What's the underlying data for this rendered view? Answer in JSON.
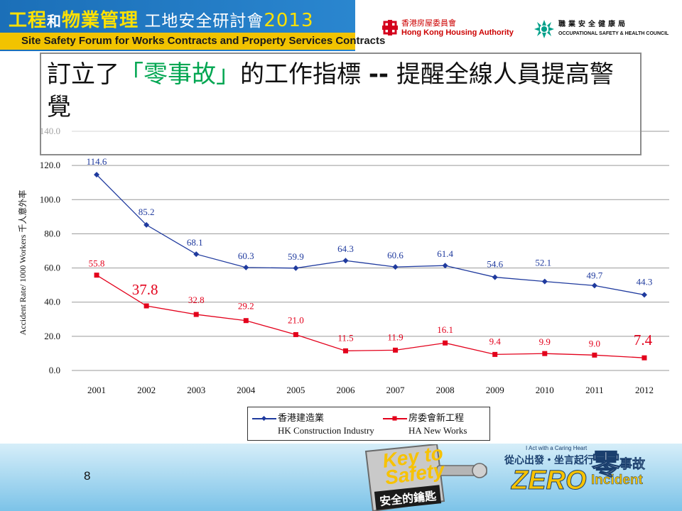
{
  "header": {
    "title_part1": "工程",
    "title_part2": "和",
    "title_part3": "物業管理",
    "title_part4": " 工地安全研討會",
    "title_year": "2013",
    "subtitle": "Site Safety Forum for Works Contracts and Property Services Contracts",
    "logo_hk_zh": "香港房屋委員會",
    "logo_hk_en": "Hong Kong Housing Authority",
    "logo_osh_zh": "職業安全健康局",
    "logo_osh_en": "OCCUPATIONAL SAFETY & HEALTH COUNCIL"
  },
  "slide": {
    "title_pre": "訂立了",
    "title_highlight": "「零事故」",
    "title_mid": "的工作指標 ",
    "title_dash": "--",
    "title_post": " 提醒全線人員提高警覺",
    "page_number": "8"
  },
  "footer": {
    "key_text_1": "Key to",
    "key_text_2": "Safety",
    "key_zh": "安全的鑰匙",
    "caring_en": "I Act with a Caring Heart",
    "caring_zh": "從心出發・坐言起行",
    "zero": "ZERO",
    "zero_char": "零",
    "shigu": "事故",
    "incident": "Incident"
  },
  "colors": {
    "series1": "#1f3a9e",
    "series2": "#e3001b",
    "grid": "#9a9a9a",
    "accent_green": "#00a651",
    "banner_yellow": "#f2c300",
    "banner_blue": "#1b6fb8"
  },
  "chart_data": {
    "type": "line",
    "x": [
      "2001",
      "2002",
      "2003",
      "2004",
      "2005",
      "2006",
      "2007",
      "2008",
      "2009",
      "2010",
      "2011",
      "2012"
    ],
    "ylabel": "Accident Rate/ 1000 Workers   千人意外率",
    "ylim": [
      0,
      140
    ],
    "yticks": [
      "0.0",
      "20.0",
      "40.0",
      "60.0",
      "80.0",
      "100.0",
      "120.0",
      "140.0"
    ],
    "grid": "horizontal",
    "legend_position": "bottom",
    "series": [
      {
        "name": "香港建造業",
        "name_en": "HK Construction Industry",
        "color": "#1f3a9e",
        "marker": "diamond",
        "values": [
          114.6,
          85.2,
          68.1,
          60.3,
          59.9,
          64.3,
          60.6,
          61.4,
          54.6,
          52.1,
          49.7,
          44.3
        ],
        "labels": [
          "114.6",
          "85.2",
          "68.1",
          "60.3",
          "59.9",
          "64.3",
          "60.6",
          "61.4",
          "54.6",
          "52.1",
          "49.7",
          "44.3"
        ]
      },
      {
        "name": "房委會新工程",
        "name_en": "HA New Works",
        "color": "#e3001b",
        "marker": "square",
        "values": [
          55.8,
          37.8,
          32.8,
          29.2,
          21.0,
          11.5,
          11.9,
          16.1,
          9.4,
          9.9,
          9.0,
          7.4
        ],
        "labels": [
          "55.8",
          "37.8",
          "32.8",
          "29.2",
          "21.0",
          "11.5",
          "11.9",
          "16.1",
          "9.4",
          "9.9",
          "9.0",
          "7.4"
        ],
        "emphasized_points": [
          "2002",
          "2012"
        ]
      }
    ]
  }
}
